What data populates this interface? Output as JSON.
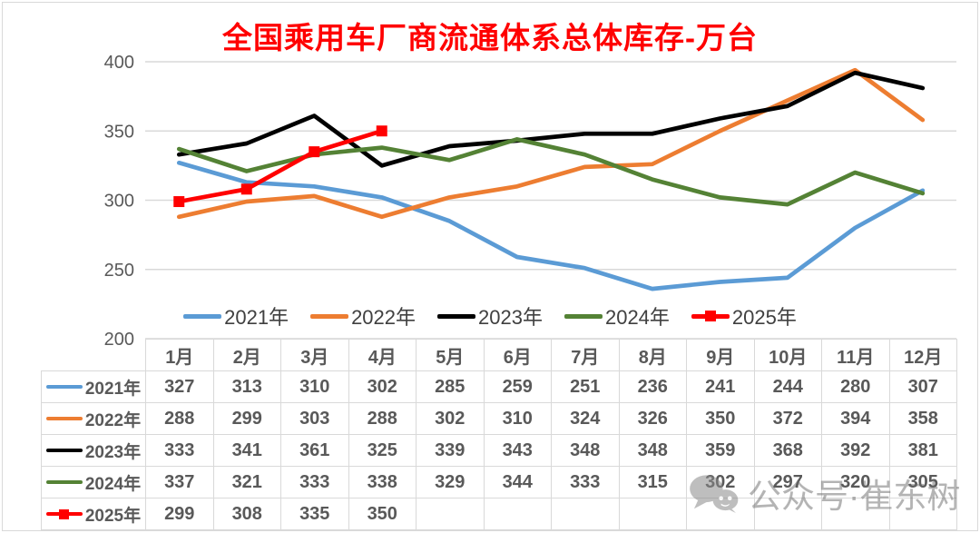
{
  "chart_data": {
    "type": "line",
    "title": "全国乘用车厂商流通体系总体库存-万台",
    "title_color": "#FF0000",
    "categories": [
      "1月",
      "2月",
      "3月",
      "4月",
      "5月",
      "6月",
      "7月",
      "8月",
      "9月",
      "10月",
      "11月",
      "12月"
    ],
    "series": [
      {
        "name": "2021年",
        "color": "#5B9BD5",
        "marker": "none",
        "values": [
          327,
          313,
          310,
          302,
          285,
          259,
          251,
          236,
          241,
          244,
          280,
          307
        ]
      },
      {
        "name": "2022年",
        "color": "#ED7D31",
        "marker": "none",
        "values": [
          288,
          299,
          303,
          288,
          302,
          310,
          324,
          326,
          350,
          372,
          394,
          358
        ]
      },
      {
        "name": "2023年",
        "color": "#000000",
        "marker": "none",
        "values": [
          333,
          341,
          361,
          325,
          339,
          343,
          348,
          348,
          359,
          368,
          392,
          381
        ]
      },
      {
        "name": "2024年",
        "color": "#548235",
        "marker": "none",
        "values": [
          337,
          321,
          333,
          338,
          329,
          344,
          333,
          315,
          302,
          297,
          320,
          305
        ]
      },
      {
        "name": "2025年",
        "color": "#FF0000",
        "marker": "square",
        "values": [
          299,
          308,
          335,
          350,
          null,
          null,
          null,
          null,
          null,
          null,
          null,
          null
        ]
      }
    ],
    "ylim": [
      200,
      400
    ],
    "yticks": [
      400,
      350,
      300,
      250,
      200
    ],
    "grid": true,
    "grid_color": "#D9D9D9",
    "axis_text_color": "#595959",
    "legend_position": "inside-bottom"
  },
  "watermark": {
    "icon": "wechat-icon",
    "text": "公众号·崔东树"
  }
}
